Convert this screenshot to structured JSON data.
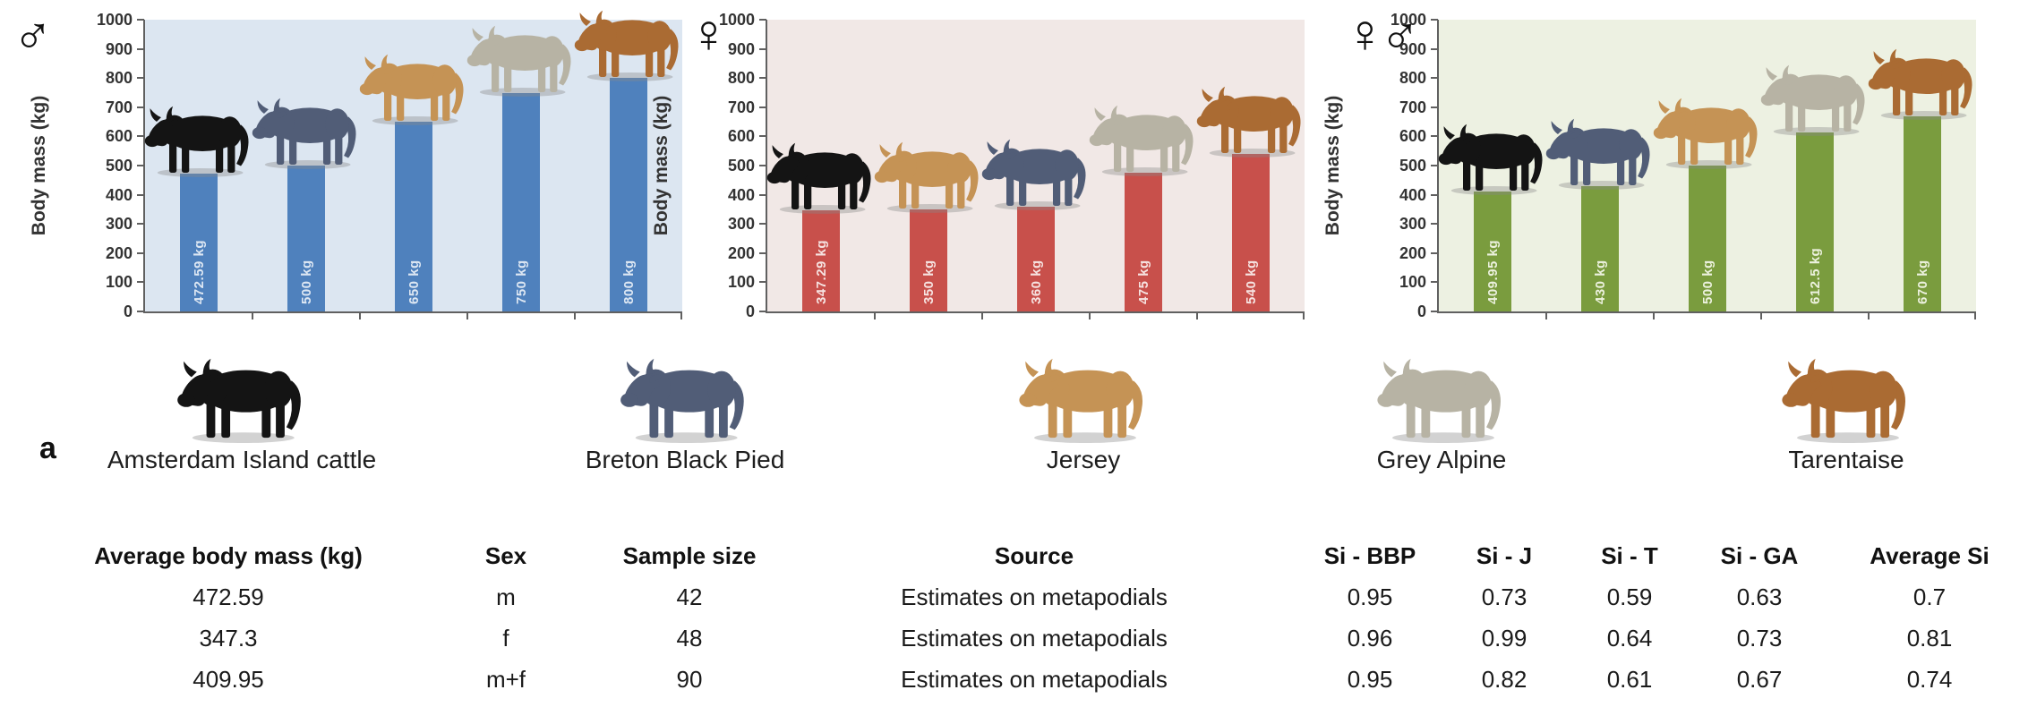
{
  "figure_label": "a",
  "colors": {
    "axis": "#606060",
    "male_bar": "#4f81bd",
    "male_plot_bg": "#dce6f1",
    "female_bar": "#c8504b",
    "female_plot_bg": "#f1e8e6",
    "mixed_bar": "#7a9c3e",
    "mixed_plot_bg": "#edf1e2"
  },
  "breeds": [
    {
      "id": "amsterdam",
      "label": "Amsterdam Island cattle",
      "color": "#141414"
    },
    {
      "id": "breton",
      "label": "Breton Black Pied",
      "color": "#515d77"
    },
    {
      "id": "jersey",
      "label": "Jersey",
      "color": "#c59355"
    },
    {
      "id": "grey_alpine",
      "label": "Grey Alpine",
      "color": "#b7b3a4"
    },
    {
      "id": "tarentaise",
      "label": "Tarentaise",
      "color": "#aa6b33"
    }
  ],
  "chart_data": [
    {
      "type": "bar",
      "sex_symbol": "♂",
      "ylabel": "Body mass (kg)",
      "ylim": [
        0,
        1000
      ],
      "ytick_step": 100,
      "bar_color": "#4f81bd",
      "plot_bg": "#dce6f1",
      "bar_label_color": "#dde7f3",
      "bars": [
        {
          "breed": "amsterdam",
          "value": 472.59,
          "label": "472.59 kg"
        },
        {
          "breed": "breton",
          "value": 500,
          "label": "500 kg"
        },
        {
          "breed": "jersey",
          "value": 650,
          "label": "650 kg"
        },
        {
          "breed": "grey_alpine",
          "value": 750,
          "label": "750 kg"
        },
        {
          "breed": "tarentaise",
          "value": 800,
          "label": "800 kg"
        }
      ]
    },
    {
      "type": "bar",
      "sex_symbol": "♀",
      "ylabel": "Body mass (kg)",
      "ylim": [
        0,
        1000
      ],
      "ytick_step": 100,
      "bar_color": "#c8504b",
      "plot_bg": "#f1e8e6",
      "bar_label_color": "#f6e3e1",
      "bars": [
        {
          "breed": "amsterdam",
          "value": 347.29,
          "label": "347.29 kg"
        },
        {
          "breed": "jersey",
          "value": 350,
          "label": "350 kg"
        },
        {
          "breed": "breton",
          "value": 360,
          "label": "360 kg"
        },
        {
          "breed": "grey_alpine",
          "value": 475,
          "label": "475 kg"
        },
        {
          "breed": "tarentaise",
          "value": 540,
          "label": "540 kg"
        }
      ]
    },
    {
      "type": "bar",
      "sex_symbol": "♀♂",
      "ylabel": "Body mass (kg)",
      "ylim": [
        0,
        1000
      ],
      "ytick_step": 100,
      "bar_color": "#7a9c3e",
      "plot_bg": "#edf1e2",
      "bar_label_color": "#ecf1de",
      "bars": [
        {
          "breed": "amsterdam",
          "value": 409.95,
          "label": "409.95 kg"
        },
        {
          "breed": "breton",
          "value": 430,
          "label": "430 kg"
        },
        {
          "breed": "jersey",
          "value": 500,
          "label": "500 kg"
        },
        {
          "breed": "grey_alpine",
          "value": 612.5,
          "label": "612.5 kg"
        },
        {
          "breed": "tarentaise",
          "value": 670,
          "label": "670 kg"
        }
      ]
    }
  ],
  "table": {
    "headers": [
      "Average body mass (kg)",
      "Sex",
      "Sample size",
      "Source",
      "Si - BBP",
      "Si - J",
      "Si - T",
      "Si - GA",
      "Average Si"
    ],
    "rows": [
      [
        "472.59",
        "m",
        "42",
        "Estimates on metapodials",
        "0.95",
        "0.73",
        "0.59",
        "0.63",
        "0.7"
      ],
      [
        "347.3",
        "f",
        "48",
        "Estimates on metapodials",
        "0.96",
        "0.99",
        "0.64",
        "0.73",
        "0.81"
      ],
      [
        "409.95",
        "m+f",
        "90",
        "Estimates on metapodials",
        "0.95",
        "0.82",
        "0.61",
        "0.67",
        "0.74"
      ]
    ]
  }
}
